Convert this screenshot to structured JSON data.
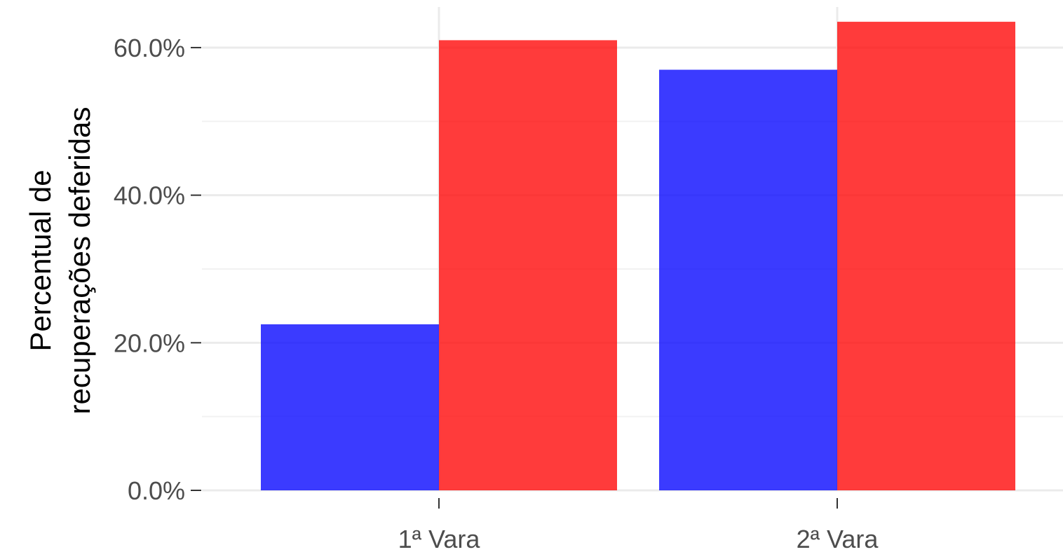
{
  "chart_data": {
    "type": "bar",
    "title": "",
    "xlabel": "",
    "ylabel": [
      "Percentual de",
      "recuperações deferidas"
    ],
    "categories": [
      "1ª Vara",
      "2ª Vara"
    ],
    "series": [
      {
        "values": [
          22.5,
          57.0
        ],
        "color": "#0000FF"
      },
      {
        "values": [
          61.0,
          63.5
        ],
        "color": "#FF0000"
      }
    ],
    "ylim": [
      0,
      65.5
    ],
    "yticks": [
      0,
      20,
      40,
      60
    ],
    "ytick_labels": [
      "0.0%",
      "20.0%",
      "40.0%",
      "60.0%"
    ],
    "grid": true,
    "legend": "none"
  }
}
